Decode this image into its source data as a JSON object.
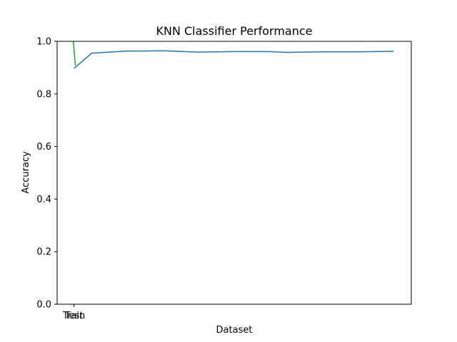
{
  "chart_data": {
    "type": "line",
    "title": "KNN Classifier Performance",
    "xlabel": "Dataset",
    "ylabel": "Accuracy",
    "ylim": [
      0,
      1
    ],
    "xlim": [
      -0.05,
      1.0
    ],
    "x_tick_labels": [
      {
        "x": 0.0,
        "label": "Train"
      },
      {
        "x": 0.0,
        "label": "Test"
      }
    ],
    "y_ticks": [
      0.0,
      0.2,
      0.4,
      0.6,
      0.8,
      1.0
    ],
    "y_tick_labels": [
      "0.0",
      "0.2",
      "0.4",
      "0.6",
      "0.8",
      "1.0"
    ],
    "grid": false,
    "series": [
      {
        "color": "#1f77b4",
        "x": [
          0.0,
          0.0526,
          0.1579,
          0.2105,
          0.2632,
          0.3684,
          0.4737,
          0.5789,
          0.6316,
          0.7368,
          0.8421,
          0.9474
        ],
        "y": [
          0.897,
          0.955,
          0.963,
          0.963,
          0.964,
          0.959,
          0.961,
          0.961,
          0.958,
          0.96,
          0.96,
          0.962
        ]
      },
      {
        "color": "#2ca02c",
        "x": [
          -0.002,
          0.004
        ],
        "y": [
          1.0,
          0.907
        ]
      }
    ]
  }
}
